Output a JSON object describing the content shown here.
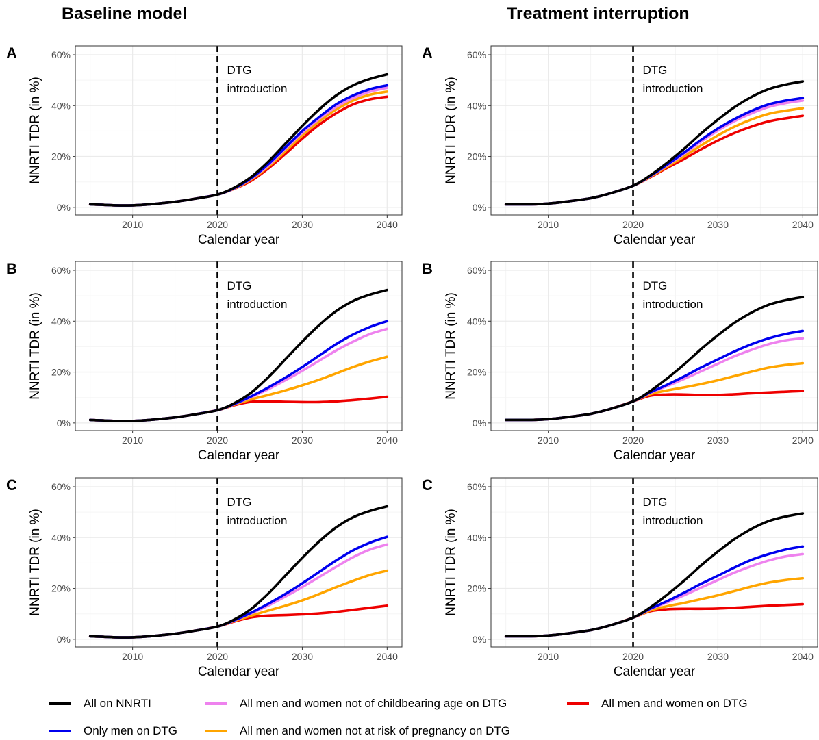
{
  "columns": {
    "left_title": "Baseline model",
    "right_title": "Treatment interruption"
  },
  "colors": {
    "All on NNRTI": "#000000",
    "Only men on DTG": "#0000ee",
    "All men and women not of childbearing age on DTG": "#ee82ee",
    "All men and women not at risk of pregnancy on DTG": "#ffa500",
    "All men and women on DTG": "#ee0000",
    "grid_major": "#ebebeb",
    "grid_minor": "#f5f5f5",
    "axis_text": "#4d4d4d"
  },
  "legend": {
    "items": [
      {
        "label": "All on NNRTI",
        "color": "#000000"
      },
      {
        "label": "Only men on DTG",
        "color": "#0000ee"
      },
      {
        "label": "All men and women not of childbearing age on DTG",
        "color": "#ee82ee"
      },
      {
        "label": "All men and women not at risk of pregnancy on DTG",
        "color": "#ffa500"
      },
      {
        "label": "All men and women on DTG",
        "color": "#ee0000"
      }
    ]
  },
  "chart_data": [
    {
      "panel": "A",
      "column": "Baseline model",
      "type": "line",
      "xlabel": "Calendar year",
      "ylabel": "NNRTI TDR (in %)",
      "xlim": [
        2005,
        2040
      ],
      "ylim": [
        0,
        60
      ],
      "xticks": [
        2010,
        2020,
        2030,
        2040
      ],
      "yticks": [
        0,
        20,
        40,
        60
      ],
      "ytick_labels": [
        "0%",
        "20%",
        "40%",
        "60%"
      ],
      "vline": {
        "x": 2020,
        "style": "dashed",
        "label_line1": "DTG",
        "label_line2": "introduction"
      },
      "grid": true,
      "x": [
        2005,
        2008,
        2010,
        2012,
        2015,
        2017,
        2020,
        2022,
        2024,
        2026,
        2028,
        2030,
        2032,
        2034,
        2036,
        2038,
        2040
      ],
      "series": [
        {
          "name": "All on NNRTI",
          "values": [
            1.2,
            0.8,
            0.8,
            1.2,
            2.2,
            3.2,
            5.0,
            7.8,
            12,
            18,
            25,
            32,
            38.5,
            44,
            48,
            50.5,
            52.3
          ]
        },
        {
          "name": "Only men on DTG",
          "values": [
            1.2,
            0.8,
            0.8,
            1.2,
            2.2,
            3.2,
            5.0,
            7.6,
            11.5,
            17,
            23.5,
            30,
            35.5,
            40.5,
            44,
            46.5,
            48
          ]
        },
        {
          "name": "All men and women not of childbearing age on DTG",
          "values": [
            1.2,
            0.8,
            0.8,
            1.2,
            2.2,
            3.2,
            5.0,
            7.5,
            11.3,
            16.5,
            23,
            29.3,
            34.8,
            39.5,
            43,
            45.5,
            47
          ]
        },
        {
          "name": "All men and women not at risk of pregnancy on DTG",
          "values": [
            1.2,
            0.8,
            0.8,
            1.2,
            2.2,
            3.2,
            5.0,
            7.4,
            11,
            16,
            22,
            28.3,
            33.8,
            38.5,
            42,
            44.3,
            45.5
          ]
        },
        {
          "name": "All men and women on DTG",
          "values": [
            1.2,
            0.8,
            0.8,
            1.2,
            2.2,
            3.2,
            5.0,
            7.3,
            10.5,
            15.3,
            21,
            27,
            32.5,
            37,
            40.5,
            42.5,
            43.5
          ]
        }
      ]
    },
    {
      "panel": "A",
      "column": "Treatment interruption",
      "type": "line",
      "xlabel": "Calendar year",
      "ylabel": "NNRTI TDR (in %)",
      "xlim": [
        2005,
        2040
      ],
      "ylim": [
        0,
        60
      ],
      "xticks": [
        2010,
        2020,
        2030,
        2040
      ],
      "yticks": [
        0,
        20,
        40,
        60
      ],
      "ytick_labels": [
        "0%",
        "20%",
        "40%",
        "60%"
      ],
      "vline": {
        "x": 2020,
        "style": "dashed",
        "label_line1": "DTG",
        "label_line2": "introduction"
      },
      "grid": true,
      "x": [
        2005,
        2008,
        2010,
        2012,
        2015,
        2017,
        2020,
        2022,
        2024,
        2026,
        2028,
        2030,
        2032,
        2034,
        2036,
        2038,
        2040
      ],
      "series": [
        {
          "name": "All on NNRTI",
          "values": [
            1.2,
            1.2,
            1.5,
            2.2,
            3.6,
            5.2,
            8.5,
            12.5,
            17.5,
            23,
            29,
            34.5,
            39.5,
            43.5,
            46.5,
            48.3,
            49.5
          ]
        },
        {
          "name": "Only men on DTG",
          "values": [
            1.2,
            1.2,
            1.5,
            2.2,
            3.6,
            5.2,
            8.5,
            12.3,
            16.8,
            21.5,
            26.5,
            31,
            34.8,
            38,
            40.5,
            42,
            43
          ]
        },
        {
          "name": "All men and women not of childbearing age on DTG",
          "values": [
            1.2,
            1.2,
            1.5,
            2.2,
            3.6,
            5.2,
            8.5,
            12.2,
            16.5,
            21,
            25.8,
            30.2,
            34,
            37,
            39.5,
            41,
            42
          ]
        },
        {
          "name": "All men and women not at risk of pregnancy on DTG",
          "values": [
            1.2,
            1.2,
            1.5,
            2.2,
            3.6,
            5.2,
            8.5,
            12,
            16,
            20,
            24.3,
            28.3,
            31.8,
            34.6,
            36.8,
            38,
            39
          ]
        },
        {
          "name": "All men and women on DTG",
          "values": [
            1.2,
            1.2,
            1.5,
            2.2,
            3.6,
            5.2,
            8.5,
            11.8,
            15.5,
            19,
            22.8,
            26.3,
            29.3,
            31.8,
            33.8,
            35,
            36
          ]
        }
      ]
    },
    {
      "panel": "B",
      "column": "Baseline model",
      "type": "line",
      "xlabel": "Calendar year",
      "ylabel": "NNRTI TDR (in %)",
      "xlim": [
        2005,
        2040
      ],
      "ylim": [
        0,
        60
      ],
      "xticks": [
        2010,
        2020,
        2030,
        2040
      ],
      "yticks": [
        0,
        20,
        40,
        60
      ],
      "ytick_labels": [
        "0%",
        "20%",
        "40%",
        "60%"
      ],
      "vline": {
        "x": 2020,
        "style": "dashed",
        "label_line1": "DTG",
        "label_line2": "introduction"
      },
      "grid": true,
      "x": [
        2005,
        2008,
        2010,
        2012,
        2015,
        2017,
        2020,
        2022,
        2024,
        2026,
        2028,
        2030,
        2032,
        2034,
        2036,
        2038,
        2040
      ],
      "series": [
        {
          "name": "All on NNRTI",
          "values": [
            1.2,
            0.8,
            0.8,
            1.2,
            2.2,
            3.2,
            5.0,
            7.8,
            12,
            18,
            25,
            32,
            38.5,
            44,
            48,
            50.5,
            52.3
          ]
        },
        {
          "name": "Only men on DTG",
          "values": [
            1.2,
            0.8,
            0.8,
            1.2,
            2.2,
            3.2,
            5.0,
            7.5,
            10.5,
            14,
            17.8,
            22,
            26.5,
            31,
            34.8,
            37.8,
            40
          ]
        },
        {
          "name": "All men and women not of childbearing age on DTG",
          "values": [
            1.2,
            0.8,
            0.8,
            1.2,
            2.2,
            3.2,
            5.0,
            7.4,
            10.2,
            13.3,
            16.8,
            20.5,
            24.5,
            28.5,
            32,
            35,
            37
          ]
        },
        {
          "name": "All men and women not at risk of pregnancy on DTG",
          "values": [
            1.2,
            0.8,
            0.8,
            1.2,
            2.2,
            3.2,
            5.0,
            7.2,
            9.3,
            11,
            12.8,
            14.8,
            17,
            19.5,
            22,
            24.2,
            26
          ]
        },
        {
          "name": "All men and women on DTG",
          "values": [
            1.2,
            0.8,
            0.8,
            1.2,
            2.2,
            3.2,
            5.0,
            7.0,
            8.3,
            8.5,
            8.3,
            8.2,
            8.2,
            8.5,
            9,
            9.6,
            10.3
          ]
        }
      ]
    },
    {
      "panel": "B",
      "column": "Treatment interruption",
      "type": "line",
      "xlabel": "Calendar year",
      "ylabel": "NNRTI TDR (in %)",
      "xlim": [
        2005,
        2040
      ],
      "ylim": [
        0,
        60
      ],
      "xticks": [
        2010,
        2020,
        2030,
        2040
      ],
      "yticks": [
        0,
        20,
        40,
        60
      ],
      "ytick_labels": [
        "0%",
        "20%",
        "40%",
        "60%"
      ],
      "vline": {
        "x": 2020,
        "style": "dashed",
        "label_line1": "DTG",
        "label_line2": "introduction"
      },
      "grid": true,
      "x": [
        2005,
        2008,
        2010,
        2012,
        2015,
        2017,
        2020,
        2022,
        2024,
        2026,
        2028,
        2030,
        2032,
        2034,
        2036,
        2038,
        2040
      ],
      "series": [
        {
          "name": "All on NNRTI",
          "values": [
            1.2,
            1.2,
            1.5,
            2.2,
            3.6,
            5.2,
            8.5,
            12.5,
            17.5,
            23,
            29,
            34.5,
            39.5,
            43.5,
            46.5,
            48.3,
            49.5
          ]
        },
        {
          "name": "Only men on DTG",
          "values": [
            1.2,
            1.2,
            1.5,
            2.2,
            3.6,
            5.2,
            8.5,
            12,
            15,
            18.3,
            21.8,
            25,
            28.2,
            31,
            33.3,
            35,
            36.2
          ]
        },
        {
          "name": "All men and women not of childbearing age on DTG",
          "values": [
            1.2,
            1.2,
            1.5,
            2.2,
            3.6,
            5.2,
            8.5,
            11.8,
            14.5,
            17.3,
            20.3,
            23.3,
            26.3,
            28.8,
            31,
            32.5,
            33.3
          ]
        },
        {
          "name": "All men and women not at risk of pregnancy on DTG",
          "values": [
            1.2,
            1.2,
            1.5,
            2.2,
            3.6,
            5.2,
            8.5,
            11.3,
            12.8,
            14,
            15.3,
            16.8,
            18.5,
            20.2,
            21.8,
            22.8,
            23.5
          ]
        },
        {
          "name": "All men and women on DTG",
          "values": [
            1.2,
            1.2,
            1.5,
            2.2,
            3.6,
            5.2,
            8.5,
            10.7,
            11.2,
            11.2,
            11,
            11,
            11.3,
            11.7,
            12,
            12.3,
            12.6
          ]
        }
      ]
    },
    {
      "panel": "C",
      "column": "Baseline model",
      "type": "line",
      "xlabel": "Calendar year",
      "ylabel": "NNRTI TDR (in %)",
      "xlim": [
        2005,
        2040
      ],
      "ylim": [
        0,
        60
      ],
      "xticks": [
        2010,
        2020,
        2030,
        2040
      ],
      "yticks": [
        0,
        20,
        40,
        60
      ],
      "ytick_labels": [
        "0%",
        "20%",
        "40%",
        "60%"
      ],
      "vline": {
        "x": 2020,
        "style": "dashed",
        "label_line1": "DTG",
        "label_line2": "introduction"
      },
      "grid": true,
      "x": [
        2005,
        2008,
        2010,
        2012,
        2015,
        2017,
        2020,
        2022,
        2024,
        2026,
        2028,
        2030,
        2032,
        2034,
        2036,
        2038,
        2040
      ],
      "series": [
        {
          "name": "All on NNRTI",
          "values": [
            1.2,
            0.8,
            0.8,
            1.2,
            2.2,
            3.2,
            5.0,
            7.8,
            12,
            18,
            25,
            32,
            38.5,
            44,
            48,
            50.5,
            52.3
          ]
        },
        {
          "name": "Only men on DTG",
          "values": [
            1.2,
            0.8,
            0.8,
            1.2,
            2.2,
            3.2,
            5.0,
            7.5,
            10.5,
            14,
            17.8,
            22,
            26.5,
            31,
            35,
            38,
            40.3
          ]
        },
        {
          "name": "All men and women not of childbearing age on DTG",
          "values": [
            1.2,
            0.8,
            0.8,
            1.2,
            2.2,
            3.2,
            5.0,
            7.4,
            10.2,
            13.3,
            16.8,
            20.5,
            24.5,
            28.5,
            32.3,
            35.3,
            37.3
          ]
        },
        {
          "name": "All men and women not at risk of pregnancy on DTG",
          "values": [
            1.2,
            0.8,
            0.8,
            1.2,
            2.2,
            3.2,
            5.0,
            7.2,
            9.3,
            11.3,
            13.2,
            15.3,
            17.8,
            20.5,
            23,
            25.3,
            27
          ]
        },
        {
          "name": "All men and women on DTG",
          "values": [
            1.2,
            0.8,
            0.8,
            1.2,
            2.2,
            3.2,
            5.0,
            7.0,
            8.6,
            9.3,
            9.5,
            9.8,
            10.2,
            10.8,
            11.6,
            12.4,
            13.2
          ]
        }
      ]
    },
    {
      "panel": "C",
      "column": "Treatment interruption",
      "type": "line",
      "xlabel": "Calendar year",
      "ylabel": "NNRTI TDR (in %)",
      "xlim": [
        2005,
        2040
      ],
      "ylim": [
        0,
        60
      ],
      "xticks": [
        2010,
        2020,
        2030,
        2040
      ],
      "yticks": [
        0,
        20,
        40,
        60
      ],
      "ytick_labels": [
        "0%",
        "20%",
        "40%",
        "60%"
      ],
      "vline": {
        "x": 2020,
        "style": "dashed",
        "label_line1": "DTG",
        "label_line2": "introduction"
      },
      "grid": true,
      "x": [
        2005,
        2008,
        2010,
        2012,
        2015,
        2017,
        2020,
        2022,
        2024,
        2026,
        2028,
        2030,
        2032,
        2034,
        2036,
        2038,
        2040
      ],
      "series": [
        {
          "name": "All on NNRTI",
          "values": [
            1.2,
            1.2,
            1.5,
            2.2,
            3.6,
            5.2,
            8.5,
            12.5,
            17.5,
            23,
            29,
            34.5,
            39.5,
            43.5,
            46.5,
            48.3,
            49.5
          ]
        },
        {
          "name": "Only men on DTG",
          "values": [
            1.2,
            1.2,
            1.5,
            2.2,
            3.6,
            5.2,
            8.5,
            12,
            15,
            18.3,
            21.8,
            25,
            28.3,
            31.3,
            33.5,
            35.3,
            36.5
          ]
        },
        {
          "name": "All men and women not of childbearing age on DTG",
          "values": [
            1.2,
            1.2,
            1.5,
            2.2,
            3.6,
            5.2,
            8.5,
            11.8,
            14.5,
            17.3,
            20.3,
            23.3,
            26.3,
            28.8,
            31,
            32.6,
            33.5
          ]
        },
        {
          "name": "All men and women not at risk of pregnancy on DTG",
          "values": [
            1.2,
            1.2,
            1.5,
            2.2,
            3.6,
            5.2,
            8.5,
            11.3,
            13,
            14.3,
            15.8,
            17.3,
            19,
            20.8,
            22.3,
            23.3,
            24
          ]
        },
        {
          "name": "All men and women on DTG",
          "values": [
            1.2,
            1.2,
            1.5,
            2.2,
            3.6,
            5.2,
            8.5,
            11,
            11.8,
            12,
            12,
            12.1,
            12.4,
            12.8,
            13.2,
            13.5,
            13.8
          ]
        }
      ]
    }
  ]
}
